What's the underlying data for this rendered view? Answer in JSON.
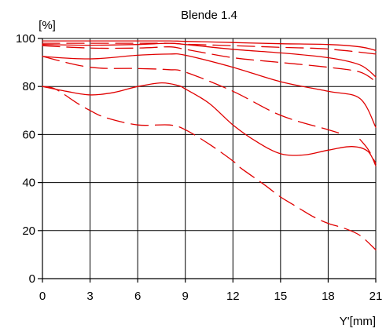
{
  "chart_data": {
    "type": "line",
    "title": "Blende 1.4",
    "ylabel": "[%]",
    "xlabel": "Y'[mm]",
    "xlim": [
      0,
      21
    ],
    "ylim": [
      0,
      100
    ],
    "xticks": [
      0,
      3,
      6,
      9,
      12,
      15,
      18,
      21
    ],
    "yticks": [
      0,
      20,
      40,
      60,
      80,
      100
    ],
    "grid": true,
    "line_color": "#e00000",
    "series": [
      {
        "style": "solid",
        "points": [
          [
            0,
            99
          ],
          [
            3,
            99
          ],
          [
            6,
            99
          ],
          [
            8,
            99
          ],
          [
            9,
            98.8
          ],
          [
            12,
            98.3
          ],
          [
            15,
            97.8
          ],
          [
            18,
            97.5
          ],
          [
            20,
            96.5
          ],
          [
            21,
            95
          ]
        ]
      },
      {
        "style": "dashed",
        "points": [
          [
            0,
            98
          ],
          [
            3,
            98
          ],
          [
            6,
            98
          ],
          [
            8,
            98
          ],
          [
            9,
            97.6
          ],
          [
            12,
            97
          ],
          [
            15,
            96.3
          ],
          [
            18,
            95.6
          ],
          [
            21,
            93.5
          ]
        ]
      },
      {
        "style": "solid",
        "points": [
          [
            0,
            97.5
          ],
          [
            3,
            97.2
          ],
          [
            6,
            97.5
          ],
          [
            8,
            98
          ],
          [
            9,
            97.5
          ],
          [
            12,
            95.5
          ],
          [
            15,
            94
          ],
          [
            18,
            92
          ],
          [
            20,
            89
          ],
          [
            21,
            84
          ]
        ]
      },
      {
        "style": "dashed",
        "points": [
          [
            0,
            97
          ],
          [
            3,
            96
          ],
          [
            6,
            96
          ],
          [
            8,
            96.5
          ],
          [
            9,
            95.5
          ],
          [
            12,
            92
          ],
          [
            15,
            90
          ],
          [
            18,
            88
          ],
          [
            20,
            86
          ],
          [
            21,
            82
          ]
        ]
      },
      {
        "style": "solid",
        "points": [
          [
            0,
            92.5
          ],
          [
            3,
            91.5
          ],
          [
            6,
            93
          ],
          [
            8,
            93.5
          ],
          [
            9,
            93
          ],
          [
            12,
            88
          ],
          [
            15,
            82
          ],
          [
            18,
            78
          ],
          [
            20,
            75
          ],
          [
            21,
            63
          ]
        ]
      },
      {
        "style": "dashed",
        "points": [
          [
            0,
            92.5
          ],
          [
            3,
            88
          ],
          [
            6,
            87.5
          ],
          [
            8,
            87
          ],
          [
            9,
            86
          ],
          [
            12,
            78
          ],
          [
            15,
            68
          ],
          [
            18,
            62
          ],
          [
            19,
            60
          ]
        ]
      },
      {
        "style": "solid",
        "points": [
          [
            0,
            80
          ],
          [
            1.5,
            78
          ],
          [
            3,
            76.5
          ],
          [
            4.5,
            77.5
          ],
          [
            6,
            80
          ],
          [
            7.5,
            81.5
          ],
          [
            8.5,
            80.5
          ],
          [
            9,
            79
          ],
          [
            10.5,
            73
          ],
          [
            12,
            64
          ],
          [
            13.5,
            57
          ],
          [
            15,
            52
          ],
          [
            16.5,
            51.5
          ],
          [
            18,
            53.5
          ],
          [
            19.5,
            55
          ],
          [
            20.5,
            53
          ],
          [
            21,
            47
          ]
        ]
      },
      {
        "style": "dashed",
        "points": [
          [
            0,
            80
          ],
          [
            0.8,
            79
          ],
          [
            2.2,
            73
          ],
          [
            3,
            70
          ],
          [
            4,
            67
          ],
          [
            6,
            64
          ],
          [
            8,
            64
          ],
          [
            9,
            62
          ],
          [
            10.5,
            56
          ],
          [
            12,
            49
          ],
          [
            12.5,
            46
          ],
          [
            14,
            39
          ],
          [
            15,
            34
          ],
          [
            16,
            30
          ],
          [
            17,
            26
          ],
          [
            18,
            23
          ],
          [
            19,
            21
          ],
          [
            20,
            18
          ],
          [
            21,
            12
          ]
        ]
      },
      {
        "style": "dashed",
        "points": [
          [
            20,
            58
          ],
          [
            20.5,
            54
          ],
          [
            21,
            48
          ]
        ]
      }
    ]
  }
}
